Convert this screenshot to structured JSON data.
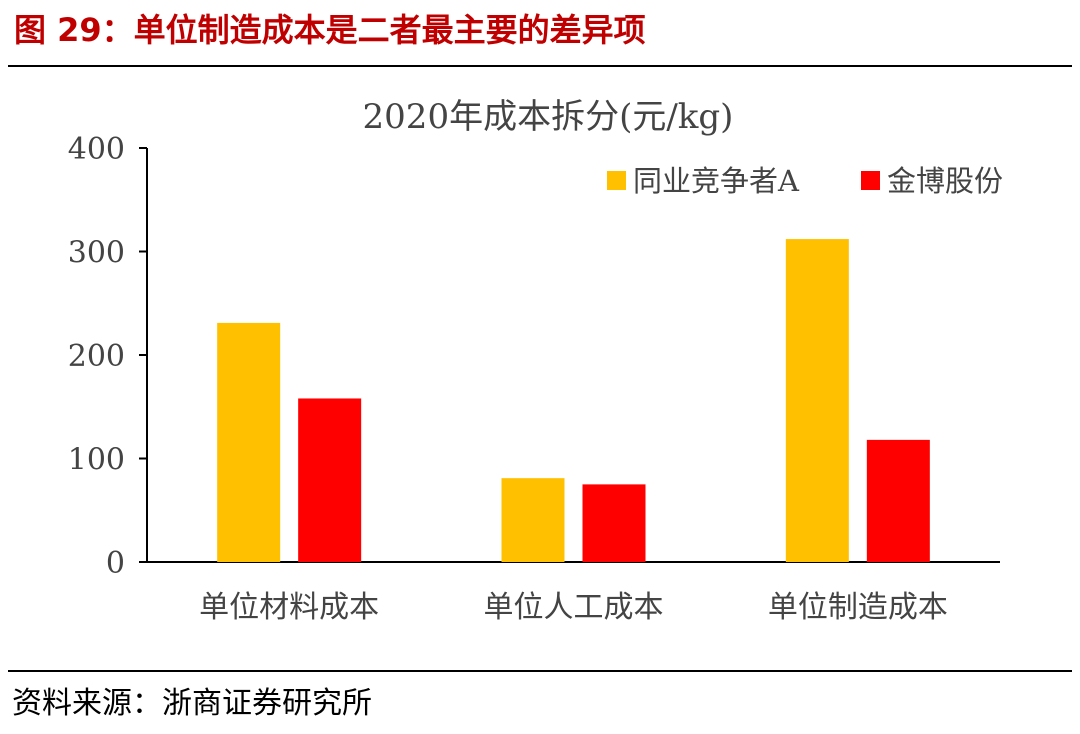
{
  "figure": {
    "title": "图 29：单位制造成本是二者最主要的差异项",
    "source": "资料来源：浙商证券研究所"
  },
  "chart_data": {
    "type": "bar",
    "title": "2020年成本拆分(元/kg)",
    "categories": [
      "单位材料成本",
      "单位人工成本",
      "单位制造成本"
    ],
    "series": [
      {
        "name": "同业竞争者A",
        "values": [
          231,
          81,
          312
        ],
        "color": "#ffc000"
      },
      {
        "name": "金博股份",
        "values": [
          158,
          75,
          118
        ],
        "color": "#ff0000"
      }
    ],
    "yticks": [
      0,
      100,
      200,
      300,
      400
    ],
    "ylim": [
      0,
      400
    ],
    "xlabel": "",
    "ylabel": "",
    "grid": false,
    "legend": "top-right"
  }
}
